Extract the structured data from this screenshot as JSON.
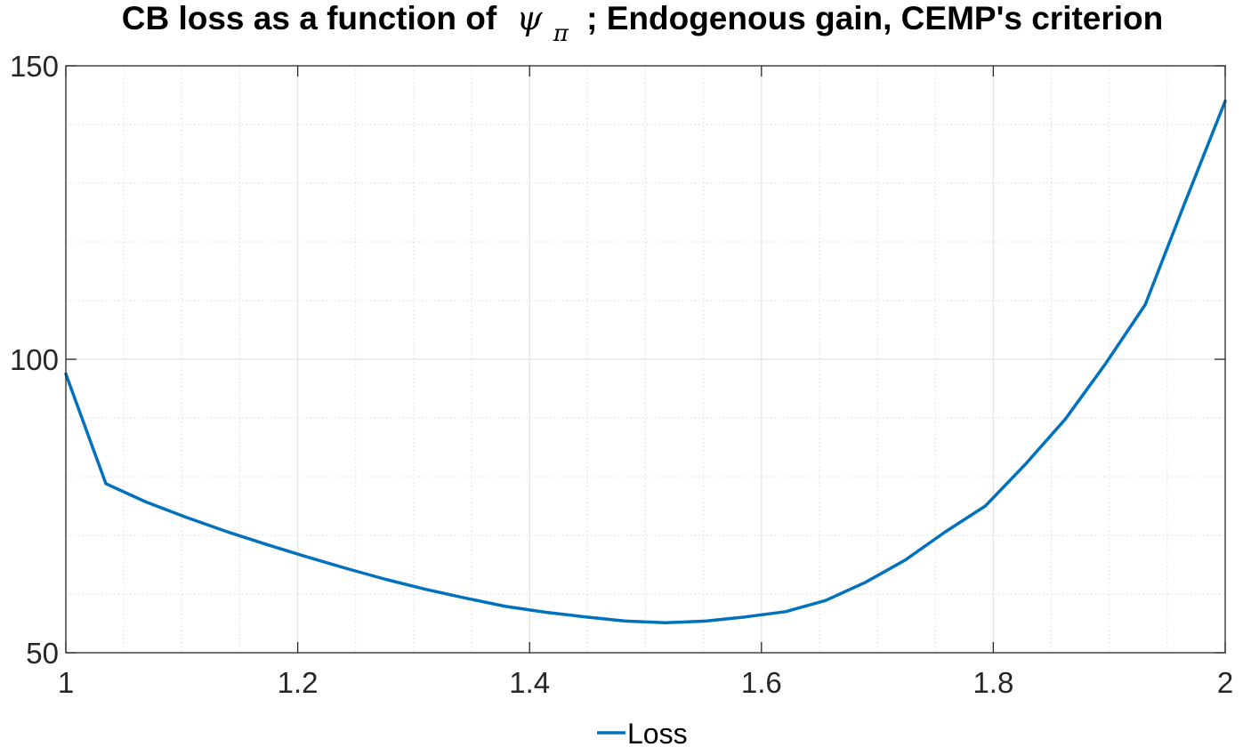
{
  "chart_data": {
    "type": "line",
    "title_prefix": "CB loss as a function of",
    "title_symbol": "ψ",
    "title_subscript": "π",
    "title_suffix": "; Endogenous gain, CEMP's criterion",
    "xlabel": "",
    "ylabel": "",
    "xlim": [
      1,
      2
    ],
    "ylim": [
      50,
      150
    ],
    "xticks": [
      1,
      1.2,
      1.4,
      1.6,
      1.8,
      2
    ],
    "xtick_labels": [
      "1",
      "1.2",
      "1.4",
      "1.6",
      "1.8",
      "2"
    ],
    "yticks": [
      50,
      100,
      150
    ],
    "ytick_labels": [
      "50",
      "100",
      "150"
    ],
    "grid": true,
    "minor_grid": true,
    "legend_position": "bottom",
    "series": [
      {
        "name": "Loss",
        "color": "#0072BD",
        "x": [
          1,
          1.0345,
          1.069,
          1.1034,
          1.1379,
          1.1724,
          1.2069,
          1.2414,
          1.2759,
          1.3103,
          1.3448,
          1.3793,
          1.4138,
          1.4483,
          1.4828,
          1.5172,
          1.5517,
          1.5862,
          1.6207,
          1.6552,
          1.6897,
          1.7241,
          1.7586,
          1.7931,
          1.8276,
          1.8621,
          1.8966,
          1.931,
          1.9655,
          2
        ],
        "values": [
          97.5,
          78.8,
          75.7,
          73.1,
          70.7,
          68.5,
          66.4,
          64.4,
          62.5,
          60.8,
          59.3,
          57.9,
          56.9,
          56.1,
          55.4,
          55.1,
          55.4,
          56.1,
          57.0,
          58.9,
          62.0,
          65.8,
          70.6,
          75.0,
          82.1,
          89.8,
          99.2,
          109.3,
          126.8,
          144.0
        ]
      }
    ]
  }
}
